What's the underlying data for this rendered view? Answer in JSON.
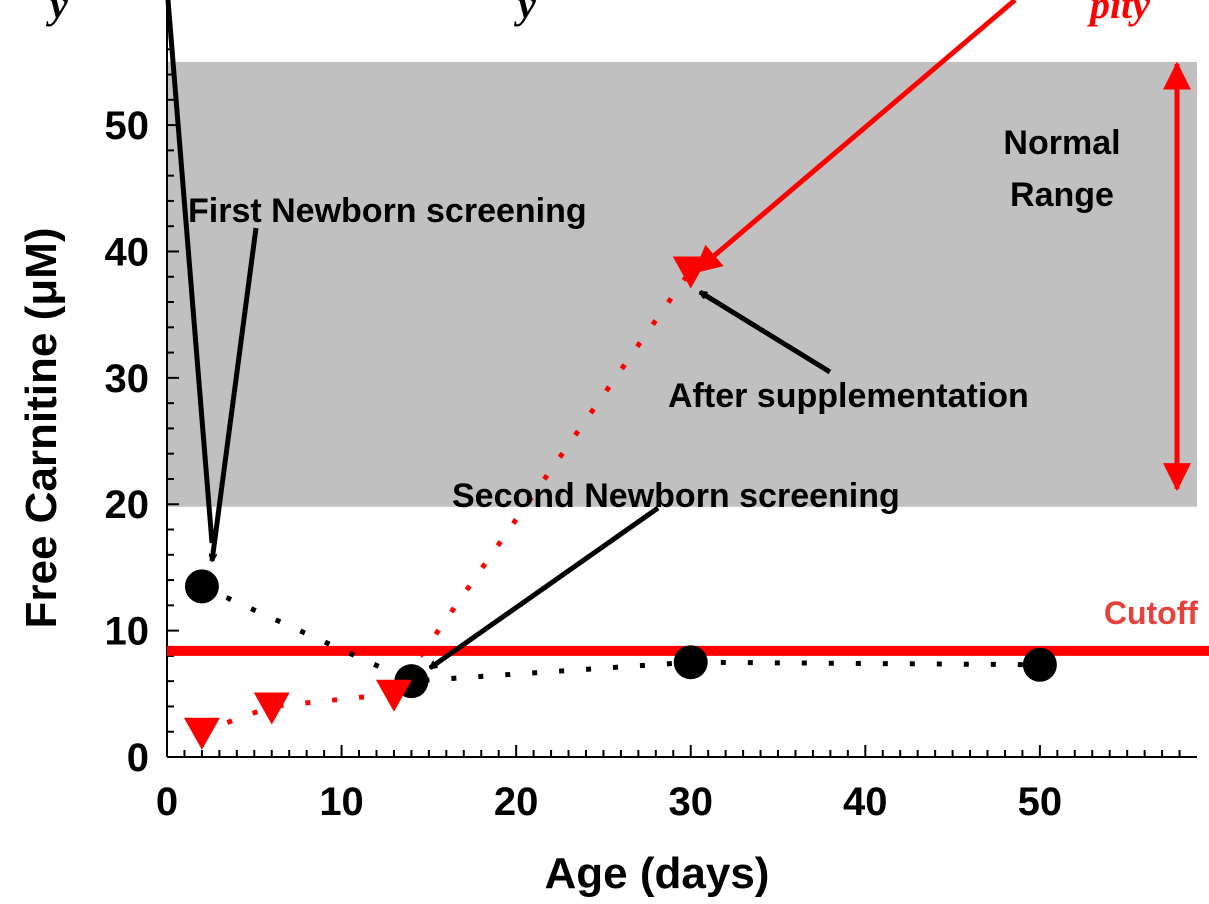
{
  "chart_data": {
    "type": "scatter",
    "xlabel": "Age (days)",
    "ylabel": "Free Carnitine (μM)",
    "xlim": [
      0,
      59
    ],
    "ylim": [
      0,
      58
    ],
    "x_ticks": [
      0,
      10,
      20,
      30,
      40,
      50
    ],
    "y_ticks": [
      0,
      10,
      20,
      30,
      40,
      50
    ],
    "grid": false,
    "series": [
      {
        "marker": "circle",
        "color": "#000000",
        "line_style": "dotted",
        "points": [
          {
            "x": 2,
            "y": 13.5
          },
          {
            "x": 14,
            "y": 6
          },
          {
            "x": 30,
            "y": 7.5
          },
          {
            "x": 50,
            "y": 7.3
          }
        ]
      },
      {
        "marker": "triangle-down",
        "color": "#ff0000",
        "line_style": "dotted",
        "points": [
          {
            "x": 2,
            "y": 2
          },
          {
            "x": 6,
            "y": 4
          },
          {
            "x": 13,
            "y": 5
          },
          {
            "x": 30,
            "y": 38.5
          }
        ]
      }
    ],
    "normal_range": {
      "from": 19.8,
      "to": 55,
      "label_line1": "Normal",
      "label_line2": "Range"
    },
    "cutoff": {
      "value": 8.4,
      "label": "Cutoff"
    },
    "annotations": [
      {
        "text": "First Newborn screening",
        "x": 2.8,
        "y": 15.5
      },
      {
        "text": "Second Newborn screening",
        "x": 15.2,
        "y": 6.8
      },
      {
        "text": "After supplementation",
        "x": 30.6,
        "y": 38
      }
    ],
    "top_clipped_text": {
      "left": "y",
      "middle": "y",
      "right": "pity"
    }
  }
}
